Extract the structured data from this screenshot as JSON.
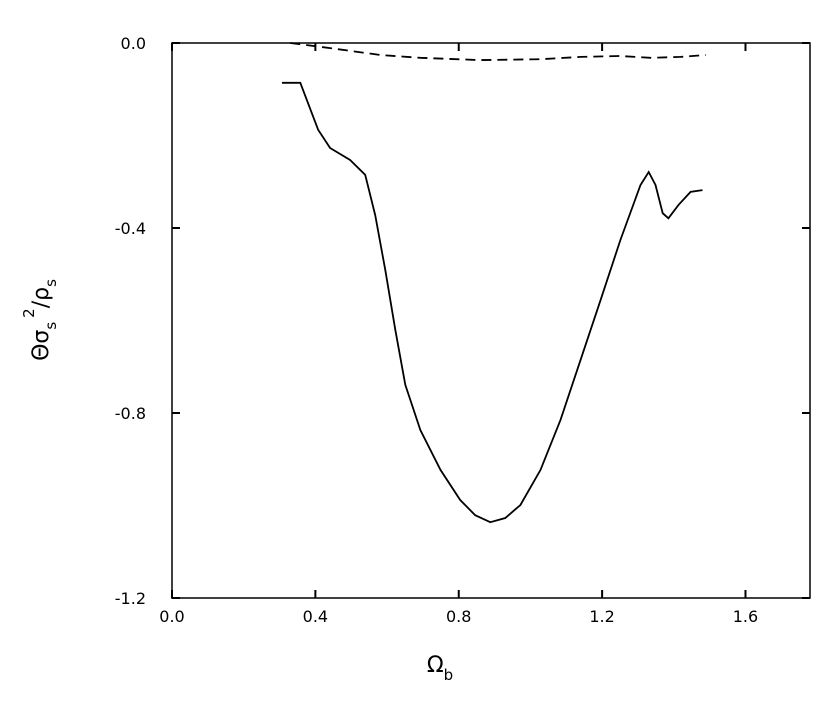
{
  "chart_data": {
    "type": "line",
    "xlabel": [
      "Ω",
      "b"
    ],
    "ylabel": [
      "Θσ",
      "s",
      "2",
      "/ρ",
      "s"
    ],
    "xlim": [
      0,
      1.78
    ],
    "ylim": [
      -1.2,
      0
    ],
    "xticks": [
      {
        "value": 0,
        "label": "0.0"
      },
      {
        "value": 0.4,
        "label": "0.4"
      },
      {
        "value": 0.8,
        "label": "0.8"
      },
      {
        "value": 1.2,
        "label": "1.2"
      },
      {
        "value": 1.6,
        "label": "1.6"
      }
    ],
    "yticks": [
      {
        "value": 0,
        "label": "0.0"
      },
      {
        "value": -0.4,
        "label": "-0.4"
      },
      {
        "value": -0.8,
        "label": "-0.8"
      },
      {
        "value": -1.2,
        "label": "-1.2"
      }
    ],
    "series": [
      {
        "color": "#000000",
        "dash": "solid",
        "x": [
          0.307,
          0.358,
          0.408,
          0.441,
          0.497,
          0.539,
          0.567,
          0.595,
          0.623,
          0.651,
          0.693,
          0.749,
          0.804,
          0.846,
          0.888,
          0.93,
          0.972,
          1.028,
          1.084,
          1.14,
          1.196,
          1.251,
          1.307,
          1.33,
          1.349,
          1.369,
          1.385,
          1.413,
          1.447,
          1.48
        ],
        "values": [
          -0.086,
          -0.086,
          -0.188,
          -0.227,
          -0.253,
          -0.285,
          -0.372,
          -0.491,
          -0.62,
          -0.739,
          -0.837,
          -0.923,
          -0.988,
          -1.021,
          -1.036,
          -1.027,
          -0.999,
          -0.923,
          -0.815,
          -0.685,
          -0.555,
          -0.426,
          -0.307,
          -0.279,
          -0.307,
          -0.368,
          -0.379,
          -0.35,
          -0.322,
          -0.318
        ]
      },
      {
        "color": "#000000",
        "dash": "dashed",
        "x": [
          0.33,
          0.441,
          0.581,
          0.693,
          0.86,
          1.028,
          1.14,
          1.251,
          1.335,
          1.419,
          1.489
        ],
        "values": [
          0,
          -0.011,
          -0.026,
          -0.032,
          -0.037,
          -0.035,
          -0.03,
          -0.028,
          -0.032,
          -0.03,
          -0.026
        ]
      }
    ]
  }
}
